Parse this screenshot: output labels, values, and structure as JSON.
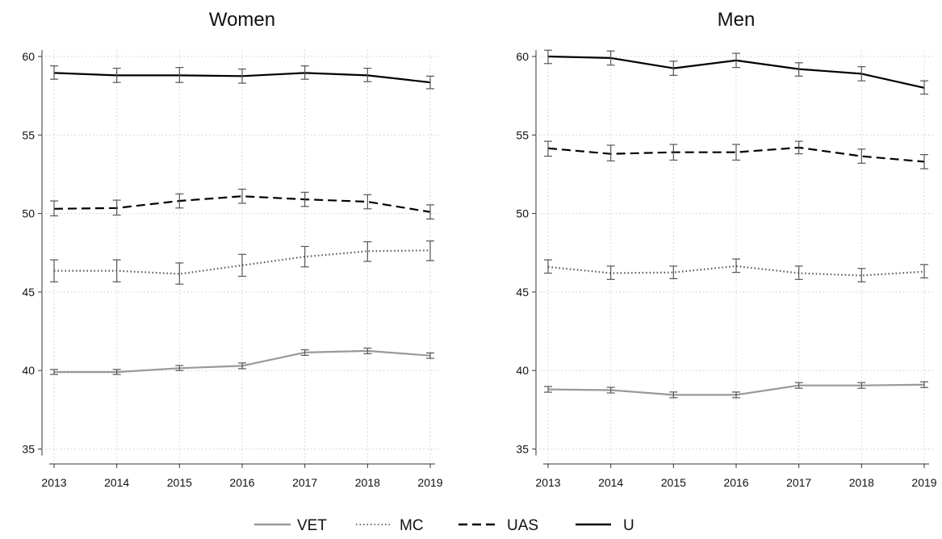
{
  "chart_data": [
    {
      "type": "line",
      "title": "Women",
      "x": [
        2013,
        2014,
        2015,
        2016,
        2017,
        2018,
        2019
      ],
      "xticks": [
        "2013",
        "2014",
        "2015",
        "2016",
        "2017",
        "2018",
        "2019"
      ],
      "yticks": [
        "35",
        "40",
        "45",
        "50",
        "55",
        "60"
      ],
      "ylim": [
        35,
        60.5
      ],
      "grid": true,
      "series": [
        {
          "name": "VET",
          "values": [
            39.9,
            39.9,
            40.15,
            40.3,
            41.15,
            41.25,
            40.95
          ],
          "ci_low": [
            39.75,
            39.75,
            40.0,
            40.12,
            40.97,
            41.07,
            40.78
          ],
          "ci_high": [
            40.07,
            40.07,
            40.32,
            40.48,
            41.32,
            41.43,
            41.12
          ]
        },
        {
          "name": "MC",
          "values": [
            46.35,
            46.35,
            46.15,
            46.7,
            47.25,
            47.6,
            47.65
          ],
          "ci_low": [
            45.65,
            45.65,
            45.5,
            46.0,
            46.6,
            46.95,
            47.0
          ],
          "ci_high": [
            47.05,
            47.05,
            46.85,
            47.4,
            47.9,
            48.2,
            48.25
          ]
        },
        {
          "name": "UAS",
          "values": [
            50.3,
            50.35,
            50.8,
            51.1,
            50.9,
            50.75,
            50.1
          ],
          "ci_low": [
            49.85,
            49.9,
            50.35,
            50.65,
            50.45,
            50.3,
            49.65
          ],
          "ci_high": [
            50.8,
            50.85,
            51.25,
            51.55,
            51.35,
            51.2,
            50.55
          ]
        },
        {
          "name": "U",
          "values": [
            58.95,
            58.8,
            58.8,
            58.75,
            58.95,
            58.8,
            58.35
          ],
          "ci_low": [
            58.55,
            58.35,
            58.35,
            58.3,
            58.55,
            58.4,
            57.95
          ],
          "ci_high": [
            59.4,
            59.25,
            59.3,
            59.2,
            59.4,
            59.25,
            58.75
          ]
        }
      ]
    },
    {
      "type": "line",
      "title": "Men",
      "x": [
        2013,
        2014,
        2015,
        2016,
        2017,
        2018,
        2019
      ],
      "xticks": [
        "2013",
        "2014",
        "2015",
        "2016",
        "2017",
        "2018",
        "2019"
      ],
      "yticks": [
        "35",
        "40",
        "45",
        "50",
        "55",
        "60"
      ],
      "ylim": [
        35,
        60.5
      ],
      "grid": true,
      "series": [
        {
          "name": "VET",
          "values": [
            38.8,
            38.75,
            38.45,
            38.45,
            39.05,
            39.05,
            39.1
          ],
          "ci_low": [
            38.62,
            38.57,
            38.27,
            38.27,
            38.87,
            38.87,
            38.92
          ],
          "ci_high": [
            38.98,
            38.93,
            38.63,
            38.63,
            39.23,
            39.23,
            39.28
          ]
        },
        {
          "name": "MC",
          "values": [
            46.6,
            46.2,
            46.25,
            46.65,
            46.2,
            46.05,
            46.3
          ],
          "ci_low": [
            46.2,
            45.8,
            45.85,
            46.25,
            45.8,
            45.65,
            45.9
          ],
          "ci_high": [
            47.05,
            46.65,
            46.65,
            47.1,
            46.65,
            46.5,
            46.75
          ]
        },
        {
          "name": "UAS",
          "values": [
            54.15,
            53.8,
            53.9,
            53.9,
            54.2,
            53.65,
            53.3
          ],
          "ci_low": [
            53.65,
            53.35,
            53.4,
            53.4,
            53.8,
            53.2,
            52.85
          ],
          "ci_high": [
            54.6,
            54.35,
            54.4,
            54.4,
            54.6,
            54.1,
            53.75
          ]
        },
        {
          "name": "U",
          "values": [
            60.0,
            59.9,
            59.25,
            59.75,
            59.2,
            58.9,
            58.0
          ],
          "ci_low": [
            59.55,
            59.45,
            58.8,
            59.3,
            58.75,
            58.45,
            57.6
          ],
          "ci_high": [
            60.4,
            60.35,
            59.7,
            60.2,
            59.6,
            59.35,
            58.45
          ]
        }
      ]
    }
  ],
  "legend": [
    {
      "label": "VET",
      "color": "#999999",
      "dash": "solid"
    },
    {
      "label": "MC",
      "color": "#555555",
      "dash": "dotted"
    },
    {
      "label": "UAS",
      "color": "#000000",
      "dash": "dashed"
    },
    {
      "label": "U",
      "color": "#000000",
      "dash": "solid"
    }
  ],
  "series_styles": {
    "VET": {
      "color": "#999999",
      "dash": "solid"
    },
    "MC": {
      "color": "#555555",
      "dash": "dotted"
    },
    "UAS": {
      "color": "#000000",
      "dash": "dashed"
    },
    "U": {
      "color": "#000000",
      "dash": "solid"
    }
  },
  "errorbar_color": "#555555",
  "grid_color": "#cccccc"
}
